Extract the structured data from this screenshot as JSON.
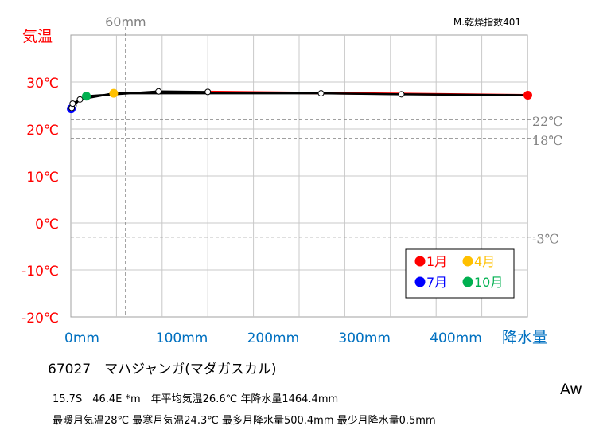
{
  "chart_data": {
    "type": "line",
    "ylabel": "気温",
    "xlabel": "降水量",
    "index_label": "M.乾燥指数401",
    "xlim": [
      0,
      500
    ],
    "ylim": [
      -20,
      40
    ],
    "y_ticks": [
      {
        "value": 30,
        "label": "30℃"
      },
      {
        "value": 20,
        "label": "20℃"
      },
      {
        "value": 10,
        "label": "10℃"
      },
      {
        "value": 0,
        "label": "0℃"
      },
      {
        "value": -10,
        "label": "-10℃"
      },
      {
        "value": -20,
        "label": "-20℃"
      }
    ],
    "x_ticks": [
      {
        "value": 0,
        "label": "0mm"
      },
      {
        "value": 100,
        "label": "100mm"
      },
      {
        "value": 200,
        "label": "200mm"
      },
      {
        "value": 300,
        "label": "300mm"
      },
      {
        "value": 400,
        "label": "400mm"
      }
    ],
    "reference_lines": [
      {
        "axis": "y",
        "value": 22,
        "label": "22℃"
      },
      {
        "axis": "y",
        "value": 18,
        "label": "18℃"
      },
      {
        "axis": "y",
        "value": -3,
        "label": "-3℃"
      },
      {
        "axis": "x",
        "value": 60,
        "label": "60mm"
      }
    ],
    "months": [
      {
        "month": 1,
        "precip": 500.4,
        "temp": 27.2
      },
      {
        "month": 2,
        "precip": 362,
        "temp": 27.4
      },
      {
        "month": 3,
        "precip": 274,
        "temp": 27.6
      },
      {
        "month": 4,
        "precip": 47,
        "temp": 27.6
      },
      {
        "month": 5,
        "precip": 10,
        "temp": 26.3
      },
      {
        "month": 6,
        "precip": 3,
        "temp": 25.0
      },
      {
        "month": 7,
        "precip": 0.5,
        "temp": 24.3
      },
      {
        "month": 8,
        "precip": 1,
        "temp": 24.5
      },
      {
        "month": 9,
        "precip": 2,
        "temp": 25.4
      },
      {
        "month": 10,
        "precip": 17,
        "temp": 27.0
      },
      {
        "month": 11,
        "precip": 96,
        "temp": 28.0
      },
      {
        "month": 12,
        "precip": 150,
        "temp": 27.9
      }
    ],
    "legend": [
      {
        "label": "1月",
        "color": "#ff0000",
        "month": 1
      },
      {
        "label": "4月",
        "color": "#ffc000",
        "month": 4
      },
      {
        "label": "7月",
        "color": "#0000ff",
        "month": 7
      },
      {
        "label": "10月",
        "color": "#00b050",
        "month": 10
      }
    ],
    "legend_position": "bottom-right",
    "grid": true
  },
  "station": {
    "line": "67027　マハジャンガ(マダガスカル)"
  },
  "stats": {
    "line1": "15.7S　46.4E *m　年平均気温26.6℃ 年降水量1464.4mm",
    "line2": "最暖月気温28℃ 最寒月気温24.3℃ 最多月降水量500.4mm 最少月降水量0.5mm"
  },
  "climate_class": "Aw",
  "colors": {
    "temp_axis": "#ff0000",
    "precip_axis": "#0070c0",
    "reference": "#808080"
  }
}
